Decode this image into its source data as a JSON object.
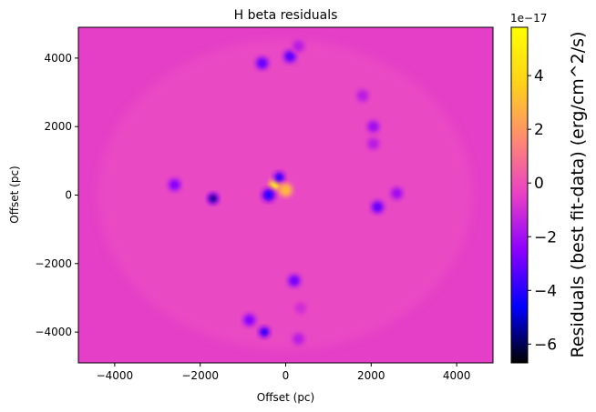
{
  "chart_data": {
    "type": "heatmap",
    "title": "H beta residuals",
    "xlabel": "Offset (pc)",
    "ylabel": "Offset (pc)",
    "xlim": [
      -4850,
      4850
    ],
    "ylim": [
      -4900,
      4900
    ],
    "xticks": [
      -4000,
      -2000,
      0,
      2000,
      4000
    ],
    "yticks": [
      -4000,
      -2000,
      0,
      2000,
      4000
    ],
    "xtick_labels": [
      "−4000",
      "−2000",
      "0",
      "2000",
      "4000"
    ],
    "ytick_labels": [
      "−4000",
      "−2000",
      "0",
      "2000",
      "4000"
    ],
    "colorbar": {
      "label": "Residuals (best fit-data) (erg/cm^2/s)",
      "offset_label": "1e−17",
      "range": [
        -6.7,
        5.8
      ],
      "ticks": [
        -6,
        -4,
        -2,
        0,
        2,
        4
      ],
      "tick_labels": [
        "−6",
        "−4",
        "−2",
        "0",
        "2",
        "4"
      ],
      "colormap": "gnuplot2",
      "colormap_stops": [
        "#000000",
        "#0000ff",
        "#8a00ff",
        "#e83fc6",
        "#ff8a72",
        "#ffd21a",
        "#ffff00"
      ]
    },
    "background_value": 0.0,
    "background_color": "#e43fc6",
    "features": [
      {
        "x": -250,
        "y": 300,
        "value": 5.5
      },
      {
        "x": -150,
        "y": 520,
        "value": -4.5
      },
      {
        "x": -400,
        "y": 0,
        "value": -4.0
      },
      {
        "x": 0,
        "y": 150,
        "value": 3.0
      },
      {
        "x": -550,
        "y": 3850,
        "value": -3.0
      },
      {
        "x": 100,
        "y": 4050,
        "value": -3.2
      },
      {
        "x": 300,
        "y": 4350,
        "value": -1.5
      },
      {
        "x": -2600,
        "y": 300,
        "value": -2.5
      },
      {
        "x": -1700,
        "y": -100,
        "value": -5.5
      },
      {
        "x": 2150,
        "y": -350,
        "value": -3.0
      },
      {
        "x": 2600,
        "y": 50,
        "value": -2.0
      },
      {
        "x": 1800,
        "y": 2900,
        "value": -1.5
      },
      {
        "x": 2050,
        "y": 2000,
        "value": -2.0
      },
      {
        "x": 2050,
        "y": 1500,
        "value": -1.5
      },
      {
        "x": 200,
        "y": -2500,
        "value": -2.8
      },
      {
        "x": -500,
        "y": -4000,
        "value": -4.5
      },
      {
        "x": -850,
        "y": -3650,
        "value": -2.5
      },
      {
        "x": 300,
        "y": -4200,
        "value": -1.5
      },
      {
        "x": 350,
        "y": -3300,
        "value": -1.0
      }
    ]
  }
}
